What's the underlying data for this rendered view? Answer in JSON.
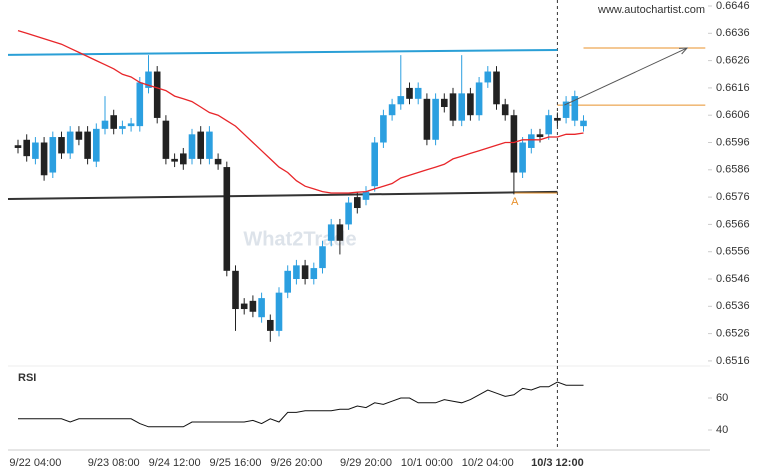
{
  "chart_data": {
    "type": "candlestick",
    "source": "www.autochartist.com",
    "watermark": "What2Trade",
    "indicator_label": "RSI",
    "categories": [
      null,
      null,
      "9/22 04:00",
      null,
      null,
      null,
      null,
      null,
      null,
      null,
      null,
      "9/23 08:00",
      null,
      null,
      null,
      null,
      null,
      null,
      "9/24 12:00",
      null,
      null,
      null,
      null,
      null,
      null,
      "9/25 16:00",
      null,
      null,
      null,
      null,
      null,
      null,
      "9/26 20:00",
      null,
      null,
      null,
      null,
      null,
      null,
      null,
      "9/29 20:00",
      null,
      null,
      null,
      null,
      null,
      null,
      "10/1 00:00",
      null,
      null,
      null,
      null,
      null,
      null,
      "10/2 04:00",
      null,
      null,
      null,
      null,
      null,
      null,
      null,
      "10/3 12:00",
      null,
      null,
      null
    ],
    "current_index": 62,
    "up_color": "#2b9fe0",
    "down_color": "#222222",
    "open": [
      0.6595,
      0.6597,
      0.659,
      0.6596,
      0.6585,
      0.6598,
      0.6592,
      0.66,
      0.66,
      0.6589,
      0.6601,
      0.6606,
      0.6601,
      0.6602,
      0.6602,
      0.6616,
      0.6622,
      0.6604,
      0.659,
      0.6592,
      0.659,
      0.66,
      0.659,
      0.659,
      0.6587,
      0.6549,
      0.6537,
      0.6538,
      0.6532,
      0.6531,
      0.6527,
      0.6541,
      0.6546,
      0.6551,
      0.6546,
      0.655,
      0.656,
      0.6566,
      0.6566,
      0.6576,
      0.6575,
      0.658,
      0.6596,
      0.6606,
      0.661,
      0.6616,
      0.6612,
      0.6612,
      0.6597,
      0.6612,
      0.6614,
      0.6604,
      0.6614,
      0.6606,
      0.6618,
      0.6622,
      0.661,
      0.6606,
      0.6585,
      0.6594,
      0.6599,
      0.6599,
      0.6605,
      0.6605,
      0.6604,
      0.6602
    ],
    "high": [
      0.6597,
      0.6599,
      0.6598,
      0.6598,
      0.66,
      0.66,
      0.6602,
      0.6602,
      0.6602,
      0.6603,
      0.6613,
      0.6608,
      0.6604,
      0.6605,
      0.662,
      0.6628,
      0.6624,
      0.6606,
      0.6592,
      0.6594,
      0.6601,
      0.6602,
      0.6602,
      0.6592,
      0.6589,
      0.6551,
      0.6539,
      0.654,
      0.6541,
      0.6533,
      0.6543,
      0.6551,
      0.6553,
      0.6553,
      0.6552,
      0.656,
      0.6568,
      0.6568,
      0.6576,
      0.6578,
      0.658,
      0.6598,
      0.6608,
      0.6612,
      0.6628,
      0.6618,
      0.6618,
      0.6614,
      0.6614,
      0.6614,
      0.6616,
      0.6628,
      0.6616,
      0.662,
      0.6624,
      0.6624,
      0.6612,
      0.6608,
      0.6598,
      0.6601,
      0.6601,
      0.6608,
      0.6607,
      0.6613,
      0.6615,
      0.6606
    ],
    "low": [
      0.6592,
      0.6589,
      0.6588,
      0.6582,
      0.6583,
      0.659,
      0.659,
      0.6595,
      0.6588,
      0.6587,
      0.6599,
      0.6599,
      0.6599,
      0.66,
      0.66,
      0.6614,
      0.6603,
      0.6588,
      0.6587,
      0.6586,
      0.6588,
      0.6588,
      0.6588,
      0.6586,
      0.6547,
      0.6527,
      0.6533,
      0.6532,
      0.653,
      0.6523,
      0.6525,
      0.6539,
      0.6544,
      0.6544,
      0.6544,
      0.6548,
      0.6558,
      0.6555,
      0.6564,
      0.657,
      0.6573,
      0.6578,
      0.6594,
      0.6604,
      0.6608,
      0.661,
      0.661,
      0.6595,
      0.6595,
      0.6607,
      0.6602,
      0.6602,
      0.6604,
      0.6604,
      0.6616,
      0.6608,
      0.6604,
      0.6577,
      0.6583,
      0.6592,
      0.6596,
      0.6597,
      0.6602,
      0.6603,
      0.6602,
      0.66
    ],
    "close": [
      0.6594,
      0.6591,
      0.6596,
      0.6584,
      0.6598,
      0.6592,
      0.66,
      0.6597,
      0.659,
      0.6601,
      0.6604,
      0.6601,
      0.6602,
      0.6603,
      0.6618,
      0.6622,
      0.6605,
      0.659,
      0.6589,
      0.6588,
      0.6599,
      0.659,
      0.66,
      0.6588,
      0.6549,
      0.6535,
      0.6535,
      0.6534,
      0.6539,
      0.6527,
      0.6541,
      0.6549,
      0.6551,
      0.6546,
      0.655,
      0.6558,
      0.6566,
      0.656,
      0.6574,
      0.6572,
      0.6578,
      0.6596,
      0.6606,
      0.661,
      0.6613,
      0.6612,
      0.6616,
      0.6597,
      0.6612,
      0.6609,
      0.6604,
      0.6614,
      0.6606,
      0.6618,
      0.6622,
      0.661,
      0.6606,
      0.6585,
      0.6596,
      0.6599,
      0.6598,
      0.6606,
      0.6604,
      0.6611,
      0.6613,
      0.6604
    ],
    "moving_average": {
      "color": "#e8262a",
      "values": [
        0.6637,
        0.6636,
        0.6635,
        0.6634,
        0.6633,
        0.6632,
        0.66305,
        0.6629,
        0.66275,
        0.6626,
        0.66245,
        0.6623,
        0.6621,
        0.662,
        0.6618,
        0.6617,
        0.6616,
        0.6615,
        0.6613,
        0.6612,
        0.6611,
        0.6609,
        0.6607,
        0.6606,
        0.6604,
        0.6602,
        0.6599,
        0.6596,
        0.6593,
        0.659,
        0.6587,
        0.6585,
        0.6582,
        0.658,
        0.6579,
        0.6578,
        0.65775,
        0.65775,
        0.65775,
        0.65778,
        0.6578,
        0.6579,
        0.658,
        0.6581,
        0.6583,
        0.6584,
        0.6585,
        0.6586,
        0.6587,
        0.6588,
        0.659,
        0.6591,
        0.6592,
        0.6593,
        0.6594,
        0.6595,
        0.6596,
        0.6596,
        0.6597,
        0.6597,
        0.6597,
        0.6598,
        0.6598,
        0.6599,
        0.6599,
        0.65995
      ]
    },
    "rsi": {
      "color": "#111111",
      "ylim": [
        30,
        75
      ],
      "yticks": [
        40,
        60
      ],
      "values": [
        47,
        47,
        47,
        47,
        47,
        47,
        45,
        47,
        47,
        47,
        47,
        47,
        47,
        47,
        44,
        42,
        42,
        42,
        42,
        42,
        45,
        45,
        45,
        45,
        45,
        45,
        45,
        46,
        44,
        47,
        45,
        51,
        51,
        52,
        52,
        52,
        52,
        53,
        53,
        55,
        54,
        57,
        56,
        58,
        60,
        60,
        57,
        57,
        57,
        59,
        58,
        57,
        59,
        62,
        65,
        63,
        61,
        62,
        66,
        65,
        67,
        67,
        70,
        68,
        68,
        68
      ]
    },
    "ylim": [
      0.65145,
      0.66482
    ],
    "yticks": [
      0.6646,
      0.6636,
      0.6626,
      0.6616,
      0.6606,
      0.6596,
      0.6586,
      0.6576,
      0.6566,
      0.6556,
      0.6546,
      0.6536,
      0.6526,
      0.6516
    ],
    "resistance": {
      "color": "#2a9fd6",
      "start": [
        -1.15,
        0.66281
      ],
      "end": [
        62,
        0.66299
      ]
    },
    "support": {
      "color": "#333333",
      "start": [
        -1.15,
        0.65753
      ],
      "end": [
        62,
        0.65779
      ]
    },
    "levels": {
      "color": "#e8902a",
      "items": [
        {
          "value": 0.66306,
          "from": 65,
          "to": 79
        },
        {
          "value": 0.66097,
          "from": 62,
          "to": 79
        },
        {
          "value": 0.65775,
          "from": 57,
          "to": 62
        }
      ]
    },
    "arrow": {
      "color": "#555555",
      "start": [
        62.8,
        0.66097
      ],
      "end": [
        76.9,
        0.66306
      ]
    },
    "pattern_label": {
      "text": "A",
      "x": 57.1,
      "y": 0.65742
    }
  }
}
